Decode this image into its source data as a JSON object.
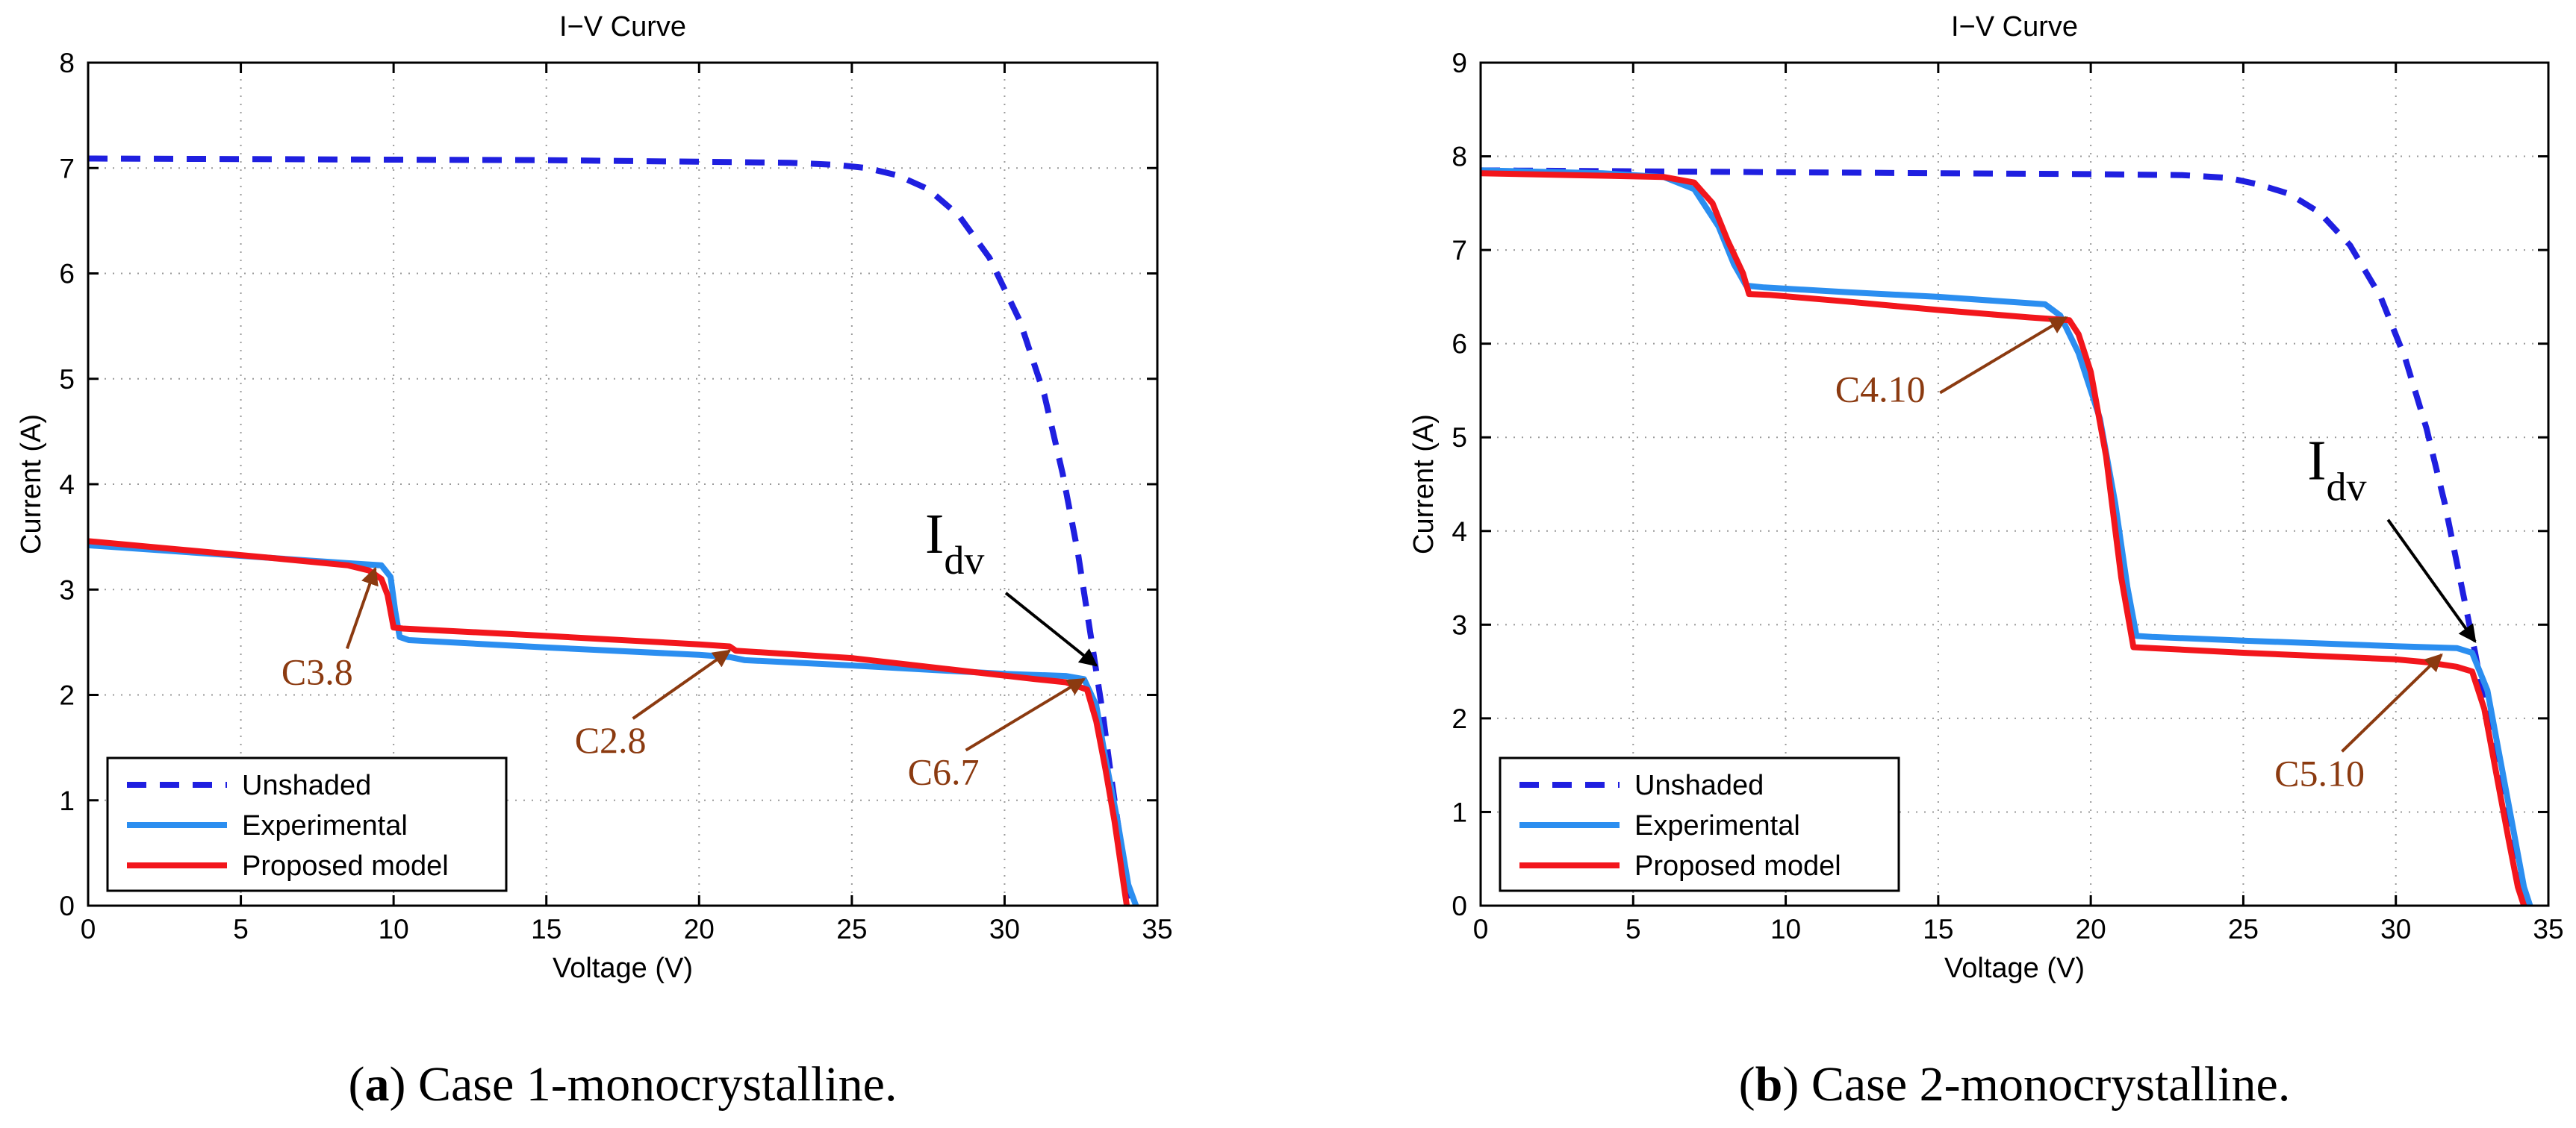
{
  "colors": {
    "unshaded": "#1f1fe0",
    "experimental": "#2b8ef0",
    "proposed": "#f2161c",
    "annotation": "#8b3a10",
    "idv": "#000000"
  },
  "chart_data": [
    {
      "type": "line",
      "title": "I−V Curve",
      "xlabel": "Voltage (V)",
      "ylabel": "Current (A)",
      "xlim": [
        0,
        35
      ],
      "ylim": [
        0,
        8
      ],
      "xticks": [
        0,
        5,
        10,
        15,
        20,
        25,
        30,
        35
      ],
      "yticks": [
        0,
        1,
        2,
        3,
        4,
        5,
        6,
        7,
        8
      ],
      "grid": true,
      "legend_position": "bottom-left",
      "caption_label": "a",
      "caption_text": " Case 1-monocrystalline.",
      "series": [
        {
          "name": "Unshaded",
          "style": "dashed",
          "points": [
            [
              0,
              7.09
            ],
            [
              5,
              7.085
            ],
            [
              10,
              7.08
            ],
            [
              15,
              7.075
            ],
            [
              20,
              7.06
            ],
            [
              23,
              7.05
            ],
            [
              24.5,
              7.03
            ],
            [
              25.5,
              7.0
            ],
            [
              26.5,
              6.93
            ],
            [
              27.5,
              6.8
            ],
            [
              28.5,
              6.55
            ],
            [
              29.5,
              6.15
            ],
            [
              30.5,
              5.55
            ],
            [
              31.3,
              4.85
            ],
            [
              31.9,
              4.1
            ],
            [
              32.4,
              3.35
            ],
            [
              32.8,
              2.6
            ],
            [
              33.2,
              1.85
            ],
            [
              33.5,
              1.2
            ],
            [
              33.8,
              0.6
            ],
            [
              34.0,
              0.2
            ],
            [
              34.15,
              0
            ]
          ]
        },
        {
          "name": "Experimental",
          "style": "solid",
          "points": [
            [
              0,
              3.42
            ],
            [
              3,
              3.36
            ],
            [
              6,
              3.3
            ],
            [
              8.5,
              3.25
            ],
            [
              9.6,
              3.23
            ],
            [
              9.9,
              3.12
            ],
            [
              10.05,
              2.8
            ],
            [
              10.2,
              2.55
            ],
            [
              10.5,
              2.52
            ],
            [
              15,
              2.45
            ],
            [
              20,
              2.38
            ],
            [
              21,
              2.36
            ],
            [
              21.5,
              2.33
            ],
            [
              25,
              2.28
            ],
            [
              30,
              2.2
            ],
            [
              32,
              2.18
            ],
            [
              32.6,
              2.15
            ],
            [
              33.0,
              1.9
            ],
            [
              33.3,
              1.4
            ],
            [
              33.7,
              0.8
            ],
            [
              34.05,
              0.2
            ],
            [
              34.3,
              0
            ]
          ]
        },
        {
          "name": "Proposed model",
          "style": "solid",
          "points": [
            [
              0,
              3.46
            ],
            [
              3,
              3.38
            ],
            [
              6,
              3.3
            ],
            [
              8.5,
              3.23
            ],
            [
              9.2,
              3.18
            ],
            [
              9.6,
              3.1
            ],
            [
              9.8,
              2.95
            ],
            [
              10.0,
              2.64
            ],
            [
              10.3,
              2.63
            ],
            [
              15,
              2.56
            ],
            [
              20,
              2.48
            ],
            [
              21.0,
              2.46
            ],
            [
              21.2,
              2.42
            ],
            [
              25,
              2.35
            ],
            [
              28,
              2.25
            ],
            [
              31,
              2.15
            ],
            [
              32,
              2.12
            ],
            [
              32.7,
              2.05
            ],
            [
              33.0,
              1.75
            ],
            [
              33.3,
              1.3
            ],
            [
              33.6,
              0.8
            ],
            [
              33.85,
              0.3
            ],
            [
              34.0,
              0
            ]
          ]
        }
      ],
      "annotations": [
        {
          "label": "C3.8",
          "target": [
            9.4,
            3.2
          ],
          "text_at": [
            7.5,
            2.1
          ]
        },
        {
          "label": "C2.8",
          "target": [
            21.0,
            2.42
          ],
          "text_at": [
            17.1,
            1.45
          ]
        },
        {
          "label": "C6.7",
          "target": [
            32.6,
            2.15
          ],
          "text_at": [
            28.0,
            1.15
          ]
        }
      ],
      "idv": {
        "base": "I",
        "sub": "dv",
        "target": [
          33.0,
          2.28
        ],
        "text_at": [
          27.4,
          3.35
        ]
      }
    },
    {
      "type": "line",
      "title": "I−V Curve",
      "xlabel": "Voltage (V)",
      "ylabel": "Current (A)",
      "xlim": [
        0,
        35
      ],
      "ylim": [
        0,
        9
      ],
      "xticks": [
        0,
        5,
        10,
        15,
        20,
        25,
        30,
        35
      ],
      "yticks": [
        0,
        1,
        2,
        3,
        4,
        5,
        6,
        7,
        8,
        9
      ],
      "grid": true,
      "legend_position": "bottom-left",
      "caption_label": "b",
      "caption_text": " Case 2-monocrystalline.",
      "series": [
        {
          "name": "Unshaded",
          "style": "dashed",
          "points": [
            [
              0,
              7.85
            ],
            [
              5,
              7.84
            ],
            [
              10,
              7.83
            ],
            [
              15,
              7.82
            ],
            [
              20,
              7.81
            ],
            [
              23,
              7.8
            ],
            [
              24.5,
              7.77
            ],
            [
              25.5,
              7.7
            ],
            [
              26.5,
              7.6
            ],
            [
              27.5,
              7.4
            ],
            [
              28.5,
              7.05
            ],
            [
              29.5,
              6.5
            ],
            [
              30.3,
              5.85
            ],
            [
              31.0,
              5.1
            ],
            [
              31.6,
              4.3
            ],
            [
              32.1,
              3.5
            ],
            [
              32.6,
              2.7
            ],
            [
              33.0,
              2.0
            ],
            [
              33.4,
              1.3
            ],
            [
              33.8,
              0.6
            ],
            [
              34.1,
              0.15
            ],
            [
              34.25,
              0
            ]
          ]
        },
        {
          "name": "Experimental",
          "style": "solid",
          "points": [
            [
              0,
              7.85
            ],
            [
              4,
              7.82
            ],
            [
              6,
              7.78
            ],
            [
              7,
              7.65
            ],
            [
              7.8,
              7.25
            ],
            [
              8.3,
              6.85
            ],
            [
              8.7,
              6.62
            ],
            [
              9.3,
              6.6
            ],
            [
              12,
              6.55
            ],
            [
              15,
              6.5
            ],
            [
              18.5,
              6.42
            ],
            [
              19.0,
              6.3
            ],
            [
              19.6,
              5.9
            ],
            [
              20.3,
              5.2
            ],
            [
              20.8,
              4.3
            ],
            [
              21.2,
              3.4
            ],
            [
              21.5,
              2.88
            ],
            [
              22,
              2.87
            ],
            [
              25,
              2.83
            ],
            [
              30,
              2.77
            ],
            [
              32,
              2.75
            ],
            [
              32.5,
              2.7
            ],
            [
              33,
              2.3
            ],
            [
              33.4,
              1.6
            ],
            [
              33.8,
              0.9
            ],
            [
              34.2,
              0.2
            ],
            [
              34.4,
              0
            ]
          ]
        },
        {
          "name": "Proposed model",
          "style": "solid",
          "points": [
            [
              0,
              7.82
            ],
            [
              3,
              7.8
            ],
            [
              6,
              7.78
            ],
            [
              7,
              7.72
            ],
            [
              7.6,
              7.5
            ],
            [
              8.1,
              7.1
            ],
            [
              8.6,
              6.75
            ],
            [
              8.8,
              6.53
            ],
            [
              9.5,
              6.52
            ],
            [
              12,
              6.45
            ],
            [
              15,
              6.36
            ],
            [
              18,
              6.28
            ],
            [
              19.3,
              6.25
            ],
            [
              19.6,
              6.1
            ],
            [
              20.0,
              5.7
            ],
            [
              20.5,
              4.8
            ],
            [
              21.0,
              3.5
            ],
            [
              21.4,
              2.76
            ],
            [
              22,
              2.75
            ],
            [
              25,
              2.7
            ],
            [
              30,
              2.63
            ],
            [
              31,
              2.6
            ],
            [
              32,
              2.55
            ],
            [
              32.5,
              2.5
            ],
            [
              32.9,
              2.1
            ],
            [
              33.3,
              1.4
            ],
            [
              33.7,
              0.7
            ],
            [
              34.0,
              0.2
            ],
            [
              34.2,
              0
            ]
          ]
        }
      ],
      "annotations": [
        {
          "label": "C4.10",
          "target": [
            19.2,
            6.28
          ],
          "text_at": [
            13.1,
            5.38
          ]
        },
        {
          "label": "C5.10",
          "target": [
            31.5,
            2.68
          ],
          "text_at": [
            27.5,
            1.28
          ]
        }
      ],
      "idv": {
        "base": "I",
        "sub": "dv",
        "target": [
          32.6,
          2.82
        ],
        "text_at": [
          27.1,
          4.55
        ]
      }
    }
  ]
}
